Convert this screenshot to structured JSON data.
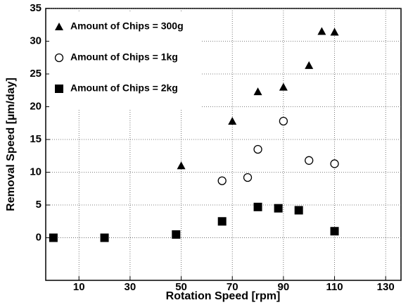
{
  "chart_data": {
    "type": "scatter",
    "xlabel": "Rotation Speed [rpm]",
    "ylabel": "Removal Speed [µm/day]",
    "series": [
      {
        "name": "Amount of Chips = 300g",
        "marker": "triangle",
        "color": "#000000",
        "x": [
          50,
          70,
          80,
          90,
          100,
          105,
          110
        ],
        "values": [
          11,
          17.8,
          22.3,
          23,
          26.3,
          31.5,
          31.4
        ]
      },
      {
        "name": "Amount of Chips = 1kg",
        "marker": "circle",
        "color": "#000000",
        "x": [
          66,
          76,
          80,
          90,
          100,
          110
        ],
        "values": [
          8.7,
          9.2,
          13.5,
          17.8,
          11.8,
          11.3
        ]
      },
      {
        "name": "Amount of Chips = 2kg",
        "marker": "square",
        "color": "#000000",
        "x": [
          0,
          20,
          48,
          66,
          80,
          88,
          96,
          110
        ],
        "values": [
          0,
          0,
          0.5,
          2.5,
          4.7,
          4.5,
          4.2,
          1
        ]
      }
    ],
    "xlim": [
      -3,
      136
    ],
    "xticks": [
      10,
      30,
      50,
      70,
      90,
      110,
      130
    ],
    "ylim": [
      -6.5,
      35
    ],
    "yticks": [
      0,
      5,
      10,
      15,
      20,
      25,
      30,
      35
    ],
    "grid": true,
    "legend": "upper left"
  }
}
